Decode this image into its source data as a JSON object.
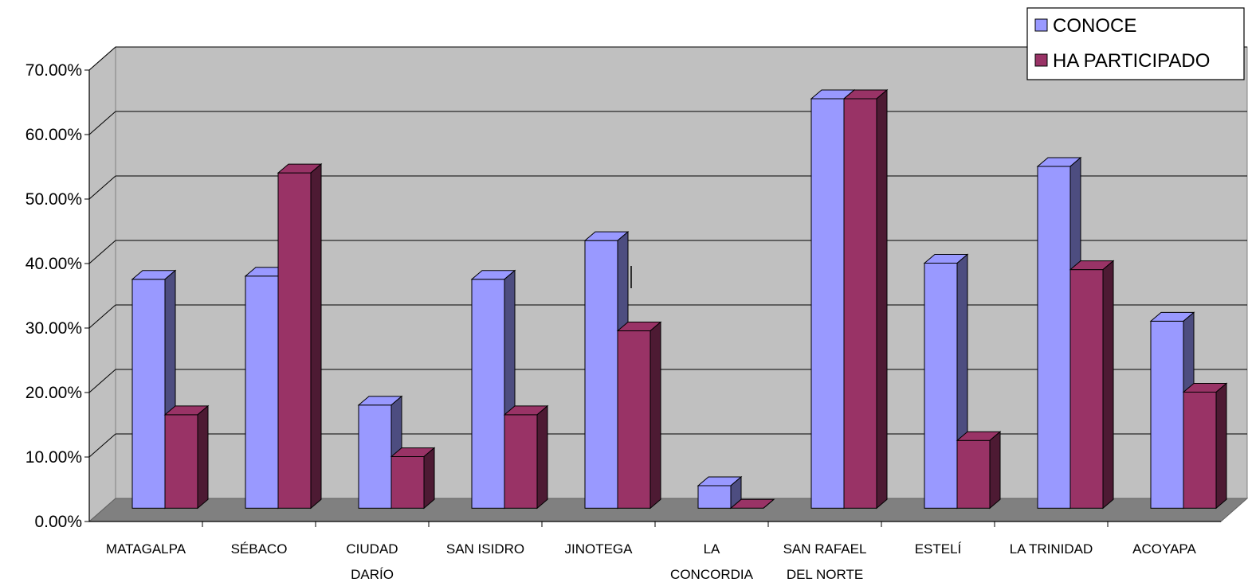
{
  "chart_data": {
    "type": "bar",
    "title": "",
    "xlabel": "",
    "ylabel": "",
    "ylim": [
      0,
      0.7
    ],
    "yticks": [
      "0.00%",
      "10.00%",
      "20.00%",
      "30.00%",
      "40.00%",
      "50.00%",
      "60.00%",
      "70.00%"
    ],
    "grid": true,
    "legend_position": "top-right",
    "categories": [
      [
        "MATAGALPA"
      ],
      [
        "SÉBACO"
      ],
      [
        "CIUDAD",
        "DARÍO"
      ],
      [
        "SAN ISIDRO"
      ],
      [
        "JINOTEGA"
      ],
      [
        "LA",
        "CONCORDIA"
      ],
      [
        "SAN RAFAEL",
        "DEL NORTE"
      ],
      [
        "ESTELÍ"
      ],
      [
        "LA TRINIDAD"
      ],
      [
        "ACOYAPA"
      ]
    ],
    "series": [
      {
        "name": "CONOCE",
        "color": "#9999ff",
        "values": [
          0.355,
          0.36,
          0.16,
          0.355,
          0.415,
          0.035,
          0.635,
          0.38,
          0.53,
          0.29
        ]
      },
      {
        "name": "HA PARTICIPADO",
        "color": "#993366",
        "values": [
          0.145,
          0.52,
          0.08,
          0.145,
          0.275,
          0.0,
          0.635,
          0.105,
          0.37,
          0.18
        ]
      }
    ]
  }
}
